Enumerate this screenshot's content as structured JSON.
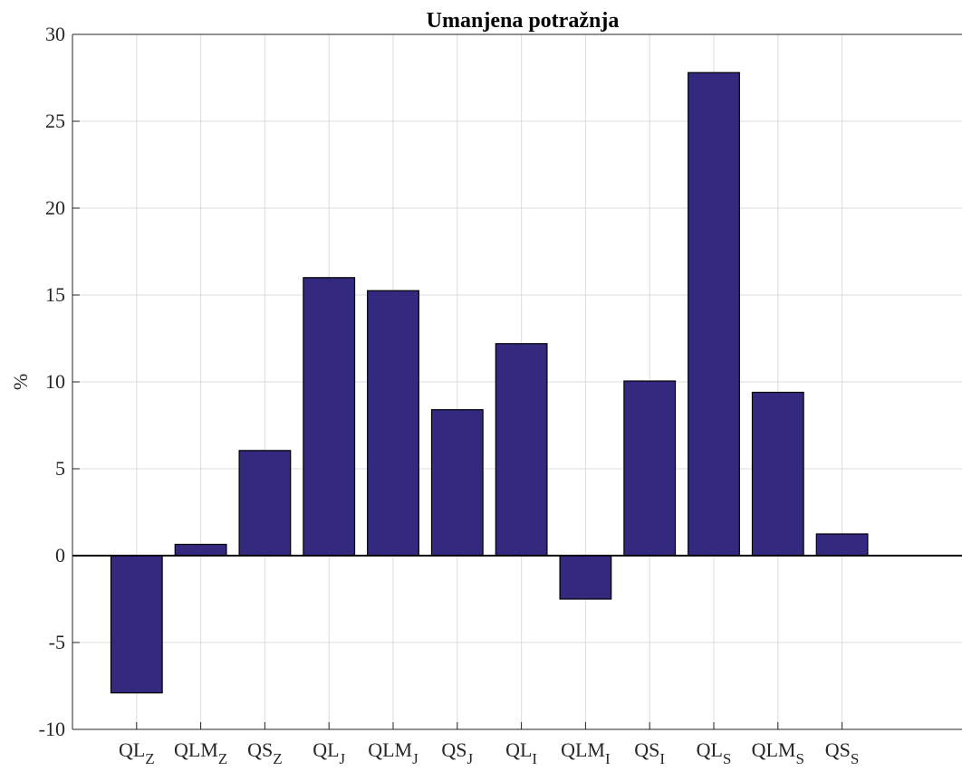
{
  "chart_data": {
    "type": "bar",
    "title": "Umanjena potražnja",
    "y_label": "%",
    "categories": [
      {
        "text": "QL",
        "sub": "Z"
      },
      {
        "text": "QLM",
        "sub": "Z"
      },
      {
        "text": "QS",
        "sub": "Z"
      },
      {
        "text": "QL",
        "sub": "J"
      },
      {
        "text": "QLM",
        "sub": "J"
      },
      {
        "text": "QS",
        "sub": "J"
      },
      {
        "text": "QL",
        "sub": "I"
      },
      {
        "text": "QLM",
        "sub": "I"
      },
      {
        "text": "QS",
        "sub": "I"
      },
      {
        "text": "QL",
        "sub": "S"
      },
      {
        "text": "QLM",
        "sub": "S"
      },
      {
        "text": "QS",
        "sub": "S"
      }
    ],
    "values": [
      -7.9,
      0.65,
      6.05,
      16,
      15.25,
      8.4,
      12.2,
      -2.5,
      10.05,
      27.8,
      9.4,
      1.25
    ],
    "color": "#33297f",
    "ylim": [
      -10,
      30
    ],
    "yticks": [
      -10,
      -5,
      0,
      5,
      10,
      15,
      20,
      25,
      30
    ],
    "grid": true
  }
}
